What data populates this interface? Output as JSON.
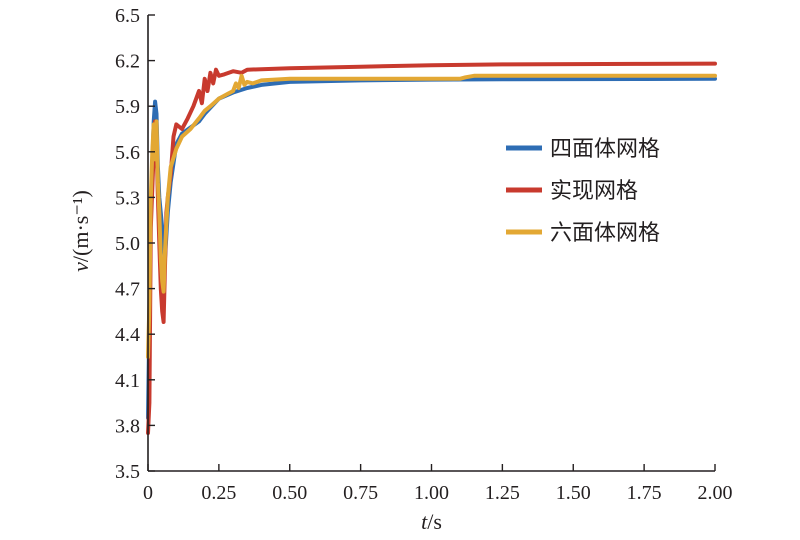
{
  "chart_data": {
    "type": "line",
    "xlabel": {
      "var": "t",
      "unit": "/s"
    },
    "ylabel": {
      "var": "v",
      "unit": "/(m·s⁻¹)"
    },
    "xlim": [
      0,
      2.0
    ],
    "ylim": [
      3.5,
      6.5
    ],
    "xticks": [
      "0",
      "0.25",
      "0.50",
      "0.75",
      "1.00",
      "1.25",
      "1.50",
      "1.75",
      "2.00"
    ],
    "yticks": [
      "3.5",
      "3.8",
      "4.1",
      "4.4",
      "4.7",
      "5.0",
      "5.3",
      "5.6",
      "5.9",
      "6.2",
      "6.5"
    ],
    "grid": false,
    "legend_position": "right",
    "series": [
      {
        "name": "四面体网格",
        "color": "#2e6db4",
        "x": [
          0,
          0.01,
          0.02,
          0.025,
          0.03,
          0.035,
          0.04,
          0.05,
          0.06,
          0.07,
          0.08,
          0.1,
          0.12,
          0.15,
          0.18,
          0.2,
          0.25,
          0.3,
          0.35,
          0.4,
          0.5,
          0.75,
          1.0,
          1.25,
          1.5,
          1.75,
          2.0
        ],
        "y": [
          3.85,
          5.2,
          5.8,
          5.93,
          5.85,
          5.5,
          5.3,
          5.1,
          4.9,
          5.2,
          5.4,
          5.65,
          5.72,
          5.76,
          5.8,
          5.85,
          5.95,
          5.99,
          6.02,
          6.04,
          6.06,
          6.07,
          6.075,
          6.077,
          6.078,
          6.079,
          6.08
        ]
      },
      {
        "name": "实现网格",
        "color": "#c83a2e",
        "x": [
          0,
          0.005,
          0.01,
          0.02,
          0.025,
          0.03,
          0.035,
          0.04,
          0.045,
          0.05,
          0.055,
          0.06,
          0.065,
          0.07,
          0.08,
          0.09,
          0.1,
          0.12,
          0.14,
          0.16,
          0.18,
          0.19,
          0.2,
          0.21,
          0.22,
          0.23,
          0.24,
          0.25,
          0.27,
          0.3,
          0.33,
          0.35,
          0.5,
          0.75,
          1.0,
          1.25,
          1.5,
          1.75,
          2.0
        ],
        "y": [
          3.75,
          3.95,
          5.1,
          5.6,
          5.8,
          5.65,
          5.3,
          5.0,
          4.7,
          4.55,
          4.48,
          4.85,
          5.2,
          5.3,
          5.45,
          5.7,
          5.78,
          5.75,
          5.82,
          5.9,
          6.0,
          5.92,
          6.08,
          6.0,
          6.12,
          6.05,
          6.14,
          6.1,
          6.11,
          6.13,
          6.12,
          6.14,
          6.15,
          6.16,
          6.17,
          6.175,
          6.177,
          6.178,
          6.18
        ]
      },
      {
        "name": "六面体网格",
        "color": "#e3a834",
        "x": [
          0,
          0.005,
          0.01,
          0.015,
          0.02,
          0.025,
          0.03,
          0.035,
          0.04,
          0.045,
          0.05,
          0.055,
          0.06,
          0.07,
          0.08,
          0.1,
          0.12,
          0.15,
          0.18,
          0.2,
          0.22,
          0.25,
          0.28,
          0.3,
          0.31,
          0.32,
          0.33,
          0.34,
          0.35,
          0.37,
          0.4,
          0.5,
          0.75,
          1.0,
          1.1,
          1.12,
          1.15,
          1.25,
          1.5,
          1.75,
          2.0
        ],
        "y": [
          4.25,
          4.6,
          5.3,
          5.6,
          5.78,
          5.55,
          5.8,
          5.4,
          5.2,
          4.9,
          4.75,
          4.68,
          4.95,
          5.3,
          5.5,
          5.62,
          5.7,
          5.75,
          5.82,
          5.87,
          5.9,
          5.95,
          5.98,
          6.0,
          6.05,
          6.02,
          6.1,
          6.04,
          6.06,
          6.05,
          6.07,
          6.08,
          6.08,
          6.08,
          6.08,
          6.09,
          6.1,
          6.1,
          6.1,
          6.1,
          6.1
        ]
      }
    ]
  }
}
